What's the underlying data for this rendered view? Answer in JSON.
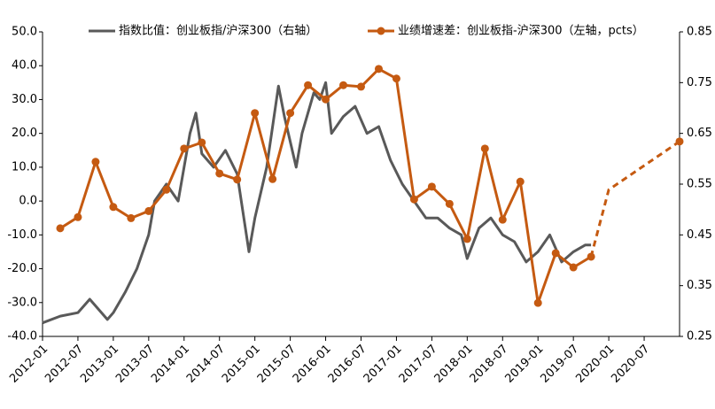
{
  "chart_data": {
    "type": "line",
    "xlim": [
      "2012-01",
      "2021-01"
    ],
    "xticks": [
      "2012-01",
      "2012-07",
      "2013-01",
      "2013-07",
      "2014-01",
      "2014-07",
      "2015-01",
      "2015-07",
      "2016-01",
      "2016-07",
      "2017-01",
      "2017-07",
      "2018-01",
      "2018-07",
      "2019-01",
      "2019-07",
      "2020-01",
      "2020-07"
    ],
    "ylim": [
      -40,
      50
    ],
    "yticks": [
      {
        "value": -40,
        "label": "-40.0"
      },
      {
        "value": -30,
        "label": "-30.0"
      },
      {
        "value": -20,
        "label": "-20.0"
      },
      {
        "value": -10,
        "label": "-10.0"
      },
      {
        "value": 0,
        "label": "0.0"
      },
      {
        "value": 10,
        "label": "10.0"
      },
      {
        "value": 20,
        "label": "20.0"
      },
      {
        "value": 30,
        "label": "30.0"
      },
      {
        "value": 40,
        "label": "40.0"
      },
      {
        "value": 50,
        "label": "50.0"
      }
    ],
    "y2lim": [
      0.25,
      0.85
    ],
    "y2ticks": [
      0.25,
      0.35,
      0.45,
      0.55,
      0.65,
      0.75,
      0.85
    ],
    "legend": "top",
    "series": [
      {
        "name": "指数比值：创业板指/沪深300（右轴）",
        "color": "#595959",
        "axis": "y",
        "x": [
          "2012-01",
          "2012-04",
          "2012-07",
          "2012-09",
          "2012-12",
          "2013-01",
          "2013-03",
          "2013-05",
          "2013-07",
          "2013-08",
          "2013-10",
          "2013-12",
          "2014-02",
          "2014-03",
          "2014-04",
          "2014-06",
          "2014-08",
          "2014-10",
          "2014-12",
          "2015-01",
          "2015-03",
          "2015-05",
          "2015-06",
          "2015-08",
          "2015-09",
          "2015-11",
          "2015-12",
          "2016-01",
          "2016-02",
          "2016-04",
          "2016-06",
          "2016-08",
          "2016-10",
          "2016-12",
          "2017-02",
          "2017-04",
          "2017-06",
          "2017-08",
          "2017-10",
          "2017-12",
          "2018-01",
          "2018-03",
          "2018-05",
          "2018-07",
          "2018-09",
          "2018-11",
          "2019-01",
          "2019-03",
          "2019-05",
          "2019-07",
          "2019-09",
          "2019-10"
        ],
        "values": [
          -36,
          -34,
          -33,
          -29,
          -35,
          -33,
          -27,
          -20,
          -10,
          0,
          5,
          0,
          20,
          26,
          14,
          10,
          15,
          8,
          -15,
          -5,
          10,
          34,
          25,
          10,
          20,
          32,
          30,
          35,
          20,
          25,
          28,
          20,
          22,
          12,
          5,
          0,
          -5,
          -5,
          -8,
          -10,
          -17,
          -8,
          -5,
          -10,
          -12,
          -18,
          -15,
          -10,
          -18,
          -15,
          -13,
          -13
        ]
      },
      {
        "name": "业绩增速差：创业板指-沪深300（左轴，pcts）",
        "color": "#c55a11",
        "axis": "y2",
        "dashed_after": 30,
        "x": [
          "2012-04",
          "2012-07",
          "2012-10",
          "2013-01",
          "2013-04",
          "2013-07",
          "2013-10",
          "2014-01",
          "2014-04",
          "2014-07",
          "2014-10",
          "2015-01",
          "2015-04",
          "2015-07",
          "2015-10",
          "2016-01",
          "2016-04",
          "2016-07",
          "2016-10",
          "2017-01",
          "2017-04",
          "2017-07",
          "2017-10",
          "2018-01",
          "2018-04",
          "2018-07",
          "2018-10",
          "2019-01",
          "2019-04",
          "2019-07",
          "2019-10",
          "2020-01",
          "2021-01"
        ],
        "values": [
          0.463,
          0.485,
          0.594,
          0.505,
          0.483,
          0.497,
          0.539,
          0.62,
          0.632,
          0.571,
          0.559,
          0.69,
          0.56,
          0.69,
          0.745,
          0.717,
          0.745,
          0.742,
          0.777,
          0.758,
          0.52,
          0.545,
          0.511,
          0.442,
          0.62,
          0.48,
          0.555,
          0.316,
          0.414,
          0.386,
          0.407,
          0.539,
          0.634
        ]
      }
    ]
  }
}
